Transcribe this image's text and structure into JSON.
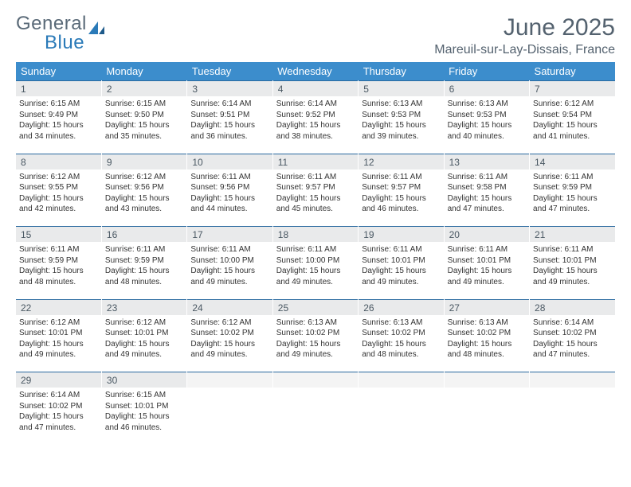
{
  "brand": {
    "part1": "General",
    "part2": "Blue"
  },
  "title": "June 2025",
  "location": "Mareuil-sur-Lay-Dissais, France",
  "colors": {
    "header_bg": "#3c8dcc",
    "header_text": "#ffffff",
    "daynum_bg": "#e9eaeb",
    "daynum_border": "#2a6aa0",
    "text": "#333333",
    "title_text": "#54626f",
    "brand_gray": "#5a6a78",
    "brand_blue": "#2a7ab8"
  },
  "typography": {
    "title_fontsize": 30,
    "location_fontsize": 16,
    "dayheader_fontsize": 13,
    "daynum_fontsize": 12,
    "cell_fontsize": 10
  },
  "day_names": [
    "Sunday",
    "Monday",
    "Tuesday",
    "Wednesday",
    "Thursday",
    "Friday",
    "Saturday"
  ],
  "weeks": [
    {
      "nums": [
        "1",
        "2",
        "3",
        "4",
        "5",
        "6",
        "7"
      ],
      "info": [
        {
          "sunrise": "Sunrise: 6:15 AM",
          "sunset": "Sunset: 9:49 PM",
          "day1": "Daylight: 15 hours",
          "day2": "and 34 minutes."
        },
        {
          "sunrise": "Sunrise: 6:15 AM",
          "sunset": "Sunset: 9:50 PM",
          "day1": "Daylight: 15 hours",
          "day2": "and 35 minutes."
        },
        {
          "sunrise": "Sunrise: 6:14 AM",
          "sunset": "Sunset: 9:51 PM",
          "day1": "Daylight: 15 hours",
          "day2": "and 36 minutes."
        },
        {
          "sunrise": "Sunrise: 6:14 AM",
          "sunset": "Sunset: 9:52 PM",
          "day1": "Daylight: 15 hours",
          "day2": "and 38 minutes."
        },
        {
          "sunrise": "Sunrise: 6:13 AM",
          "sunset": "Sunset: 9:53 PM",
          "day1": "Daylight: 15 hours",
          "day2": "and 39 minutes."
        },
        {
          "sunrise": "Sunrise: 6:13 AM",
          "sunset": "Sunset: 9:53 PM",
          "day1": "Daylight: 15 hours",
          "day2": "and 40 minutes."
        },
        {
          "sunrise": "Sunrise: 6:12 AM",
          "sunset": "Sunset: 9:54 PM",
          "day1": "Daylight: 15 hours",
          "day2": "and 41 minutes."
        }
      ]
    },
    {
      "nums": [
        "8",
        "9",
        "10",
        "11",
        "12",
        "13",
        "14"
      ],
      "info": [
        {
          "sunrise": "Sunrise: 6:12 AM",
          "sunset": "Sunset: 9:55 PM",
          "day1": "Daylight: 15 hours",
          "day2": "and 42 minutes."
        },
        {
          "sunrise": "Sunrise: 6:12 AM",
          "sunset": "Sunset: 9:56 PM",
          "day1": "Daylight: 15 hours",
          "day2": "and 43 minutes."
        },
        {
          "sunrise": "Sunrise: 6:11 AM",
          "sunset": "Sunset: 9:56 PM",
          "day1": "Daylight: 15 hours",
          "day2": "and 44 minutes."
        },
        {
          "sunrise": "Sunrise: 6:11 AM",
          "sunset": "Sunset: 9:57 PM",
          "day1": "Daylight: 15 hours",
          "day2": "and 45 minutes."
        },
        {
          "sunrise": "Sunrise: 6:11 AM",
          "sunset": "Sunset: 9:57 PM",
          "day1": "Daylight: 15 hours",
          "day2": "and 46 minutes."
        },
        {
          "sunrise": "Sunrise: 6:11 AM",
          "sunset": "Sunset: 9:58 PM",
          "day1": "Daylight: 15 hours",
          "day2": "and 47 minutes."
        },
        {
          "sunrise": "Sunrise: 6:11 AM",
          "sunset": "Sunset: 9:59 PM",
          "day1": "Daylight: 15 hours",
          "day2": "and 47 minutes."
        }
      ]
    },
    {
      "nums": [
        "15",
        "16",
        "17",
        "18",
        "19",
        "20",
        "21"
      ],
      "info": [
        {
          "sunrise": "Sunrise: 6:11 AM",
          "sunset": "Sunset: 9:59 PM",
          "day1": "Daylight: 15 hours",
          "day2": "and 48 minutes."
        },
        {
          "sunrise": "Sunrise: 6:11 AM",
          "sunset": "Sunset: 9:59 PM",
          "day1": "Daylight: 15 hours",
          "day2": "and 48 minutes."
        },
        {
          "sunrise": "Sunrise: 6:11 AM",
          "sunset": "Sunset: 10:00 PM",
          "day1": "Daylight: 15 hours",
          "day2": "and 49 minutes."
        },
        {
          "sunrise": "Sunrise: 6:11 AM",
          "sunset": "Sunset: 10:00 PM",
          "day1": "Daylight: 15 hours",
          "day2": "and 49 minutes."
        },
        {
          "sunrise": "Sunrise: 6:11 AM",
          "sunset": "Sunset: 10:01 PM",
          "day1": "Daylight: 15 hours",
          "day2": "and 49 minutes."
        },
        {
          "sunrise": "Sunrise: 6:11 AM",
          "sunset": "Sunset: 10:01 PM",
          "day1": "Daylight: 15 hours",
          "day2": "and 49 minutes."
        },
        {
          "sunrise": "Sunrise: 6:11 AM",
          "sunset": "Sunset: 10:01 PM",
          "day1": "Daylight: 15 hours",
          "day2": "and 49 minutes."
        }
      ]
    },
    {
      "nums": [
        "22",
        "23",
        "24",
        "25",
        "26",
        "27",
        "28"
      ],
      "info": [
        {
          "sunrise": "Sunrise: 6:12 AM",
          "sunset": "Sunset: 10:01 PM",
          "day1": "Daylight: 15 hours",
          "day2": "and 49 minutes."
        },
        {
          "sunrise": "Sunrise: 6:12 AM",
          "sunset": "Sunset: 10:01 PM",
          "day1": "Daylight: 15 hours",
          "day2": "and 49 minutes."
        },
        {
          "sunrise": "Sunrise: 6:12 AM",
          "sunset": "Sunset: 10:02 PM",
          "day1": "Daylight: 15 hours",
          "day2": "and 49 minutes."
        },
        {
          "sunrise": "Sunrise: 6:13 AM",
          "sunset": "Sunset: 10:02 PM",
          "day1": "Daylight: 15 hours",
          "day2": "and 49 minutes."
        },
        {
          "sunrise": "Sunrise: 6:13 AM",
          "sunset": "Sunset: 10:02 PM",
          "day1": "Daylight: 15 hours",
          "day2": "and 48 minutes."
        },
        {
          "sunrise": "Sunrise: 6:13 AM",
          "sunset": "Sunset: 10:02 PM",
          "day1": "Daylight: 15 hours",
          "day2": "and 48 minutes."
        },
        {
          "sunrise": "Sunrise: 6:14 AM",
          "sunset": "Sunset: 10:02 PM",
          "day1": "Daylight: 15 hours",
          "day2": "and 47 minutes."
        }
      ]
    },
    {
      "nums": [
        "29",
        "30",
        "",
        "",
        "",
        "",
        ""
      ],
      "info": [
        {
          "sunrise": "Sunrise: 6:14 AM",
          "sunset": "Sunset: 10:02 PM",
          "day1": "Daylight: 15 hours",
          "day2": "and 47 minutes."
        },
        {
          "sunrise": "Sunrise: 6:15 AM",
          "sunset": "Sunset: 10:01 PM",
          "day1": "Daylight: 15 hours",
          "day2": "and 46 minutes."
        },
        null,
        null,
        null,
        null,
        null
      ]
    }
  ]
}
